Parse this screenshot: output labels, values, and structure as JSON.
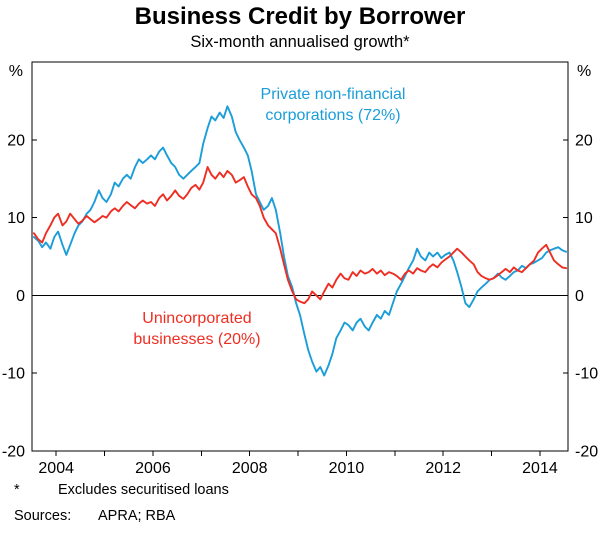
{
  "header": {
    "title": "Business Credit by Borrower",
    "subtitle": "Six-month annualised growth*"
  },
  "chart_data": {
    "type": "line",
    "title": "Business Credit by Borrower",
    "subtitle": "Six-month annualised growth*",
    "xlabel": "",
    "ylabel": "%",
    "xlim": [
      2003.5,
      2014.58
    ],
    "ylim": [
      -20,
      30
    ],
    "yticks": [
      -20,
      -10,
      0,
      10,
      20
    ],
    "y_unit": "%",
    "xticks": [
      2004,
      2005,
      2006,
      2007,
      2008,
      2009,
      2010,
      2011,
      2012,
      2013,
      2014
    ],
    "xtick_labels": [
      "2004",
      "2006",
      "2008",
      "2010",
      "2012",
      "2014"
    ],
    "xtick_label_positions": [
      2004,
      2006,
      2008,
      2010,
      2012,
      2014
    ],
    "grid": false,
    "zero_line": true,
    "legend_position": "annotations-inline",
    "series": [
      {
        "name": "Private non-financial corporations (72%)",
        "color": "#1B9DD8",
        "points": [
          [
            2003.54,
            7.5
          ],
          [
            2003.63,
            7.0
          ],
          [
            2003.71,
            6.2
          ],
          [
            2003.79,
            6.8
          ],
          [
            2003.88,
            6.0
          ],
          [
            2003.96,
            7.5
          ],
          [
            2004.04,
            8.2
          ],
          [
            2004.13,
            6.5
          ],
          [
            2004.21,
            5.2
          ],
          [
            2004.29,
            6.5
          ],
          [
            2004.38,
            8.0
          ],
          [
            2004.46,
            9.0
          ],
          [
            2004.54,
            9.5
          ],
          [
            2004.63,
            10.5
          ],
          [
            2004.71,
            11.0
          ],
          [
            2004.79,
            12.0
          ],
          [
            2004.88,
            13.5
          ],
          [
            2004.96,
            12.5
          ],
          [
            2005.04,
            12.0
          ],
          [
            2005.13,
            13.0
          ],
          [
            2005.21,
            14.5
          ],
          [
            2005.29,
            14.0
          ],
          [
            2005.38,
            15.0
          ],
          [
            2005.46,
            15.5
          ],
          [
            2005.54,
            15.0
          ],
          [
            2005.63,
            16.5
          ],
          [
            2005.71,
            17.5
          ],
          [
            2005.79,
            17.0
          ],
          [
            2005.88,
            17.5
          ],
          [
            2005.96,
            18.0
          ],
          [
            2006.04,
            17.5
          ],
          [
            2006.13,
            18.5
          ],
          [
            2006.21,
            19.0
          ],
          [
            2006.29,
            18.0
          ],
          [
            2006.38,
            17.0
          ],
          [
            2006.46,
            16.5
          ],
          [
            2006.54,
            15.5
          ],
          [
            2006.63,
            15.0
          ],
          [
            2006.71,
            15.5
          ],
          [
            2006.79,
            16.0
          ],
          [
            2006.88,
            16.5
          ],
          [
            2006.96,
            17.0
          ],
          [
            2007.04,
            19.5
          ],
          [
            2007.13,
            21.5
          ],
          [
            2007.21,
            23.0
          ],
          [
            2007.29,
            22.5
          ],
          [
            2007.38,
            23.5
          ],
          [
            2007.46,
            22.8
          ],
          [
            2007.54,
            24.3
          ],
          [
            2007.63,
            23.0
          ],
          [
            2007.71,
            21.0
          ],
          [
            2007.79,
            20.0
          ],
          [
            2007.88,
            19.0
          ],
          [
            2007.96,
            18.0
          ],
          [
            2008.04,
            16.0
          ],
          [
            2008.13,
            13.0
          ],
          [
            2008.21,
            12.0
          ],
          [
            2008.29,
            11.0
          ],
          [
            2008.38,
            11.5
          ],
          [
            2008.46,
            12.5
          ],
          [
            2008.54,
            11.0
          ],
          [
            2008.63,
            8.0
          ],
          [
            2008.71,
            5.0
          ],
          [
            2008.79,
            2.5
          ],
          [
            2008.88,
            1.0
          ],
          [
            2008.96,
            -1.0
          ],
          [
            2009.04,
            -2.5
          ],
          [
            2009.13,
            -5.0
          ],
          [
            2009.21,
            -7.0
          ],
          [
            2009.29,
            -8.5
          ],
          [
            2009.38,
            -9.8
          ],
          [
            2009.46,
            -9.2
          ],
          [
            2009.54,
            -10.3
          ],
          [
            2009.63,
            -9.0
          ],
          [
            2009.71,
            -7.5
          ],
          [
            2009.79,
            -5.5
          ],
          [
            2009.88,
            -4.5
          ],
          [
            2009.96,
            -3.5
          ],
          [
            2010.04,
            -3.8
          ],
          [
            2010.13,
            -4.5
          ],
          [
            2010.21,
            -3.5
          ],
          [
            2010.29,
            -3.0
          ],
          [
            2010.38,
            -4.0
          ],
          [
            2010.46,
            -4.5
          ],
          [
            2010.54,
            -3.5
          ],
          [
            2010.63,
            -2.5
          ],
          [
            2010.71,
            -3.0
          ],
          [
            2010.79,
            -2.0
          ],
          [
            2010.88,
            -2.5
          ],
          [
            2010.96,
            -1.0
          ],
          [
            2011.04,
            0.5
          ],
          [
            2011.13,
            1.5
          ],
          [
            2011.21,
            2.5
          ],
          [
            2011.29,
            3.5
          ],
          [
            2011.38,
            4.5
          ],
          [
            2011.46,
            6.0
          ],
          [
            2011.54,
            5.0
          ],
          [
            2011.63,
            4.5
          ],
          [
            2011.71,
            5.5
          ],
          [
            2011.79,
            5.0
          ],
          [
            2011.88,
            5.5
          ],
          [
            2011.96,
            4.8
          ],
          [
            2012.04,
            5.2
          ],
          [
            2012.13,
            5.5
          ],
          [
            2012.21,
            4.5
          ],
          [
            2012.29,
            3.0
          ],
          [
            2012.38,
            1.0
          ],
          [
            2012.46,
            -1.0
          ],
          [
            2012.54,
            -1.5
          ],
          [
            2012.63,
            -0.5
          ],
          [
            2012.71,
            0.5
          ],
          [
            2012.79,
            1.0
          ],
          [
            2012.88,
            1.5
          ],
          [
            2012.96,
            2.0
          ],
          [
            2013.04,
            2.2
          ],
          [
            2013.13,
            2.8
          ],
          [
            2013.21,
            2.3
          ],
          [
            2013.29,
            2.0
          ],
          [
            2013.38,
            2.5
          ],
          [
            2013.46,
            3.0
          ],
          [
            2013.54,
            3.2
          ],
          [
            2013.63,
            3.8
          ],
          [
            2013.71,
            3.5
          ],
          [
            2013.79,
            4.0
          ],
          [
            2013.88,
            4.2
          ],
          [
            2013.96,
            4.5
          ],
          [
            2014.04,
            4.8
          ],
          [
            2014.13,
            5.5
          ],
          [
            2014.21,
            5.8
          ],
          [
            2014.29,
            6.0
          ],
          [
            2014.38,
            6.2
          ],
          [
            2014.46,
            5.8
          ],
          [
            2014.54,
            5.6
          ]
        ]
      },
      {
        "name": "Unincorporated businesses (20%)",
        "color": "#EE2E23",
        "points": [
          [
            2003.54,
            8.0
          ],
          [
            2003.63,
            7.2
          ],
          [
            2003.71,
            6.8
          ],
          [
            2003.79,
            8.0
          ],
          [
            2003.88,
            9.0
          ],
          [
            2003.96,
            10.0
          ],
          [
            2004.04,
            10.5
          ],
          [
            2004.13,
            9.0
          ],
          [
            2004.21,
            9.5
          ],
          [
            2004.29,
            10.5
          ],
          [
            2004.38,
            9.8
          ],
          [
            2004.46,
            9.2
          ],
          [
            2004.54,
            9.6
          ],
          [
            2004.63,
            10.2
          ],
          [
            2004.71,
            9.8
          ],
          [
            2004.79,
            9.4
          ],
          [
            2004.88,
            9.8
          ],
          [
            2004.96,
            10.2
          ],
          [
            2005.04,
            10.0
          ],
          [
            2005.13,
            10.8
          ],
          [
            2005.21,
            11.2
          ],
          [
            2005.29,
            10.8
          ],
          [
            2005.38,
            11.5
          ],
          [
            2005.46,
            12.0
          ],
          [
            2005.54,
            11.6
          ],
          [
            2005.63,
            11.2
          ],
          [
            2005.71,
            11.8
          ],
          [
            2005.79,
            12.2
          ],
          [
            2005.88,
            11.8
          ],
          [
            2005.96,
            12.0
          ],
          [
            2006.04,
            11.5
          ],
          [
            2006.13,
            12.5
          ],
          [
            2006.21,
            13.0
          ],
          [
            2006.29,
            12.2
          ],
          [
            2006.38,
            12.8
          ],
          [
            2006.46,
            13.5
          ],
          [
            2006.54,
            12.8
          ],
          [
            2006.63,
            12.4
          ],
          [
            2006.71,
            13.0
          ],
          [
            2006.79,
            13.8
          ],
          [
            2006.88,
            14.2
          ],
          [
            2006.96,
            13.6
          ],
          [
            2007.04,
            14.5
          ],
          [
            2007.13,
            16.5
          ],
          [
            2007.21,
            15.5
          ],
          [
            2007.29,
            15.0
          ],
          [
            2007.38,
            15.8
          ],
          [
            2007.46,
            15.2
          ],
          [
            2007.54,
            16.0
          ],
          [
            2007.63,
            15.5
          ],
          [
            2007.71,
            14.5
          ],
          [
            2007.79,
            14.8
          ],
          [
            2007.88,
            15.2
          ],
          [
            2007.96,
            14.0
          ],
          [
            2008.04,
            13.0
          ],
          [
            2008.13,
            12.5
          ],
          [
            2008.21,
            11.5
          ],
          [
            2008.29,
            10.0
          ],
          [
            2008.38,
            9.0
          ],
          [
            2008.46,
            8.5
          ],
          [
            2008.54,
            8.0
          ],
          [
            2008.63,
            6.0
          ],
          [
            2008.71,
            4.0
          ],
          [
            2008.79,
            2.0
          ],
          [
            2008.88,
            0.5
          ],
          [
            2008.96,
            -0.5
          ],
          [
            2009.04,
            -0.8
          ],
          [
            2009.13,
            -1.0
          ],
          [
            2009.21,
            -0.5
          ],
          [
            2009.29,
            0.5
          ],
          [
            2009.38,
            0.0
          ],
          [
            2009.46,
            -0.5
          ],
          [
            2009.54,
            0.5
          ],
          [
            2009.63,
            1.5
          ],
          [
            2009.71,
            1.0
          ],
          [
            2009.79,
            2.0
          ],
          [
            2009.88,
            2.8
          ],
          [
            2009.96,
            2.2
          ],
          [
            2010.04,
            2.0
          ],
          [
            2010.13,
            3.0
          ],
          [
            2010.21,
            2.5
          ],
          [
            2010.29,
            3.2
          ],
          [
            2010.38,
            2.8
          ],
          [
            2010.46,
            3.0
          ],
          [
            2010.54,
            3.4
          ],
          [
            2010.63,
            2.8
          ],
          [
            2010.71,
            3.2
          ],
          [
            2010.79,
            2.6
          ],
          [
            2010.88,
            3.0
          ],
          [
            2010.96,
            2.8
          ],
          [
            2011.04,
            2.5
          ],
          [
            2011.13,
            2.0
          ],
          [
            2011.21,
            2.8
          ],
          [
            2011.29,
            3.2
          ],
          [
            2011.38,
            2.8
          ],
          [
            2011.46,
            3.5
          ],
          [
            2011.54,
            3.2
          ],
          [
            2011.63,
            3.0
          ],
          [
            2011.71,
            3.6
          ],
          [
            2011.79,
            4.0
          ],
          [
            2011.88,
            3.6
          ],
          [
            2011.96,
            4.2
          ],
          [
            2012.04,
            4.6
          ],
          [
            2012.13,
            5.0
          ],
          [
            2012.21,
            5.5
          ],
          [
            2012.29,
            6.0
          ],
          [
            2012.38,
            5.5
          ],
          [
            2012.46,
            5.0
          ],
          [
            2012.54,
            4.5
          ],
          [
            2012.63,
            4.0
          ],
          [
            2012.71,
            3.0
          ],
          [
            2012.79,
            2.5
          ],
          [
            2012.88,
            2.2
          ],
          [
            2012.96,
            2.0
          ],
          [
            2013.04,
            2.2
          ],
          [
            2013.13,
            2.6
          ],
          [
            2013.21,
            3.0
          ],
          [
            2013.29,
            3.4
          ],
          [
            2013.38,
            3.0
          ],
          [
            2013.46,
            3.6
          ],
          [
            2013.54,
            3.2
          ],
          [
            2013.63,
            3.0
          ],
          [
            2013.71,
            3.5
          ],
          [
            2013.79,
            4.0
          ],
          [
            2013.88,
            4.5
          ],
          [
            2013.96,
            5.5
          ],
          [
            2014.04,
            6.0
          ],
          [
            2014.13,
            6.5
          ],
          [
            2014.21,
            5.5
          ],
          [
            2014.29,
            4.5
          ],
          [
            2014.38,
            4.0
          ],
          [
            2014.46,
            3.6
          ],
          [
            2014.54,
            3.5
          ]
        ]
      }
    ]
  },
  "annotations": {
    "blue": {
      "line1": "Private non-financial",
      "line2": "corporations (72%)"
    },
    "red": {
      "line1": "Unincorporated",
      "line2": "businesses (20%)"
    }
  },
  "footnotes": {
    "asterisk": "*",
    "note": "Excludes securitised loans",
    "sources_label": "Sources:",
    "sources": "APRA; RBA"
  }
}
